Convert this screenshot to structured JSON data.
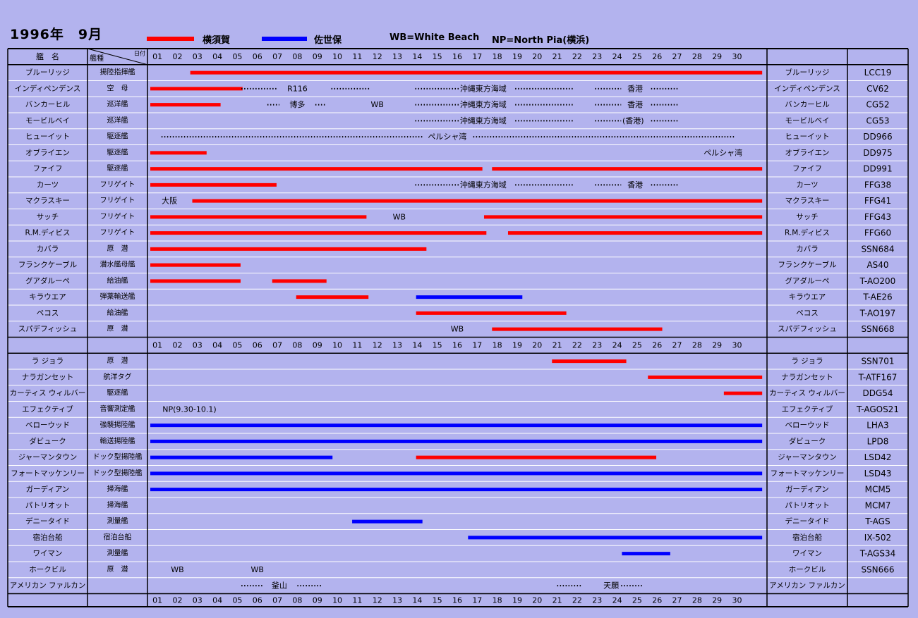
{
  "title": "1996年　9月",
  "legend": [
    {
      "label": "横須賀",
      "color": "#ff0000"
    },
    {
      "label": "佐世保",
      "color": "#0000ff"
    },
    {
      "label": "WB=White Beach"
    },
    {
      "label": "NP=North Pia(横浜)"
    }
  ],
  "headers": {
    "name": "艦　名",
    "type": "艦種",
    "date": "日付"
  },
  "colors": {
    "background": "#b3b3ee",
    "yokosuka": "#ff0000",
    "sasebo": "#0000ff",
    "border": "#000000",
    "grid": "#ffffff"
  },
  "chart_data": {
    "type": "gantt",
    "x": [
      "01",
      "02",
      "03",
      "04",
      "05",
      "06",
      "07",
      "08",
      "09",
      "10",
      "11",
      "12",
      "13",
      "14",
      "15",
      "16",
      "17",
      "18",
      "19",
      "20",
      "21",
      "22",
      "23",
      "24",
      "25",
      "26",
      "27",
      "28",
      "29",
      "30"
    ],
    "series": [
      {
        "name": "横須賀",
        "color": "#ff0000"
      },
      {
        "name": "佐世保",
        "color": "#0000ff"
      }
    ],
    "groups": [
      {
        "rows": [
          {
            "name": "ブルーリッジ",
            "type": "揚陸指揮艦",
            "code": "LCC19",
            "bars": [
              {
                "s": 1,
                "start": 3,
                "end": 30.9
              }
            ]
          },
          {
            "name": "インディペンデンス",
            "type": "空　母",
            "code": "CV62",
            "bars": [
              {
                "s": 1,
                "start": 1,
                "end": 4.9
              }
            ],
            "notes": [
              {
                "text": "R116",
                "at": 8
              },
              {
                "text": "沖縄東方海域",
                "at": 17.3
              },
              {
                "text": "香港",
                "at": 24.9
              }
            ],
            "dots": [
              [
                5.2,
                7
              ],
              [
                9.7,
                11.6
              ],
              [
                13.9,
                16.1
              ],
              [
                18.9,
                21.8
              ],
              [
                22.9,
                24.2
              ],
              [
                25.7,
                27.1
              ]
            ]
          },
          {
            "name": "バンカーヒル",
            "type": "巡洋艦",
            "code": "CG52",
            "bars": [
              {
                "s": 1,
                "start": 1,
                "end": 3.8
              }
            ],
            "notes": [
              {
                "text": "博多",
                "at": 8
              },
              {
                "text": "WB",
                "at": 12
              },
              {
                "text": "沖縄東方海域",
                "at": 17.3
              },
              {
                "text": "香港",
                "at": 24.9
              }
            ],
            "dots": [
              [
                6.5,
                7.1
              ],
              [
                8.9,
                9.4
              ],
              [
                13.9,
                16.1
              ],
              [
                18.9,
                21.8
              ],
              [
                22.9,
                24.2
              ],
              [
                25.7,
                27.1
              ]
            ]
          },
          {
            "name": "モービルベイ",
            "type": "巡洋艦",
            "code": "CG53",
            "notes": [
              {
                "text": "沖縄東方海域",
                "at": 17.3
              },
              {
                "text": "(香港)",
                "at": 24.8
              }
            ],
            "dots": [
              [
                13.9,
                16.1
              ],
              [
                18.9,
                21.8
              ],
              [
                22.9,
                24.2
              ],
              [
                25.7,
                27.1
              ]
            ]
          },
          {
            "name": "ヒューイット",
            "type": "駆逐艦",
            "code": "DD966",
            "notes": [
              {
                "text": "ペルシャ湾",
                "at": 15.5
              }
            ],
            "dots": [
              [
                1.2,
                14.3
              ],
              [
                16.8,
                29.9
              ]
            ]
          },
          {
            "name": "オブライエン",
            "type": "駆逐艦",
            "code": "DD975",
            "bars": [
              {
                "s": 1,
                "start": 1,
                "end": 3.1
              }
            ],
            "notes": [
              {
                "text": "ペルシャ湾",
                "at": 29.3
              }
            ]
          },
          {
            "name": "ファイフ",
            "type": "駆逐艦",
            "code": "DD991",
            "bars": [
              {
                "s": 1,
                "start": 1,
                "end": 16.9
              },
              {
                "s": 1,
                "start": 18.1,
                "end": 30.9
              }
            ]
          },
          {
            "name": "カーツ",
            "type": "フリゲイト",
            "code": "FFG38",
            "bars": [
              {
                "s": 1,
                "start": 1,
                "end": 6.6
              }
            ],
            "notes": [
              {
                "text": "沖縄東方海域",
                "at": 17.3
              },
              {
                "text": "香港",
                "at": 24.9
              }
            ],
            "dots": [
              [
                13.9,
                16.1
              ],
              [
                18.9,
                21.8
              ],
              [
                22.9,
                24.2
              ],
              [
                25.7,
                27.1
              ]
            ]
          },
          {
            "name": "マクラスキー",
            "type": "フリゲイト",
            "code": "FFG41",
            "bars": [
              {
                "s": 1,
                "start": 3.1,
                "end": 30.9
              }
            ],
            "notes": [
              {
                "text": "大阪",
                "at": 1.6
              }
            ]
          },
          {
            "name": "サッチ",
            "type": "フリゲイト",
            "code": "FFG43",
            "bars": [
              {
                "s": 1,
                "start": 1,
                "end": 11.1
              },
              {
                "s": 1,
                "start": 17.7,
                "end": 30.9
              }
            ],
            "notes": [
              {
                "text": "WB",
                "at": 13.1
              }
            ]
          },
          {
            "name": "R.M.ディビス",
            "type": "フリゲイト",
            "code": "FFG60",
            "bars": [
              {
                "s": 1,
                "start": 1,
                "end": 17.1
              },
              {
                "s": 1,
                "start": 18.9,
                "end": 30.9
              }
            ]
          },
          {
            "name": "カバラ",
            "type": "原　潜",
            "code": "SSN684",
            "bars": [
              {
                "s": 1,
                "start": 1,
                "end": 14.1
              }
            ]
          },
          {
            "name": "フランクケーブル",
            "type": "潜水艦母艦",
            "code": "AS40",
            "bars": [
              {
                "s": 1,
                "start": 1,
                "end": 4.8
              }
            ]
          },
          {
            "name": "グアダルーペ",
            "type": "給油艦",
            "code": "T-AO200",
            "bars": [
              {
                "s": 1,
                "start": 1,
                "end": 4.8
              },
              {
                "s": 1,
                "start": 7.1,
                "end": 9.1
              }
            ]
          },
          {
            "name": "キラウエア",
            "type": "弾薬輸送艦",
            "code": "T-AE26",
            "bars": [
              {
                "s": 1,
                "start": 8.3,
                "end": 11.2
              },
              {
                "s": 2,
                "start": 14.3,
                "end": 18.9
              }
            ]
          },
          {
            "name": "ペコス",
            "type": "給油艦",
            "code": "T-AO197",
            "bars": [
              {
                "s": 1,
                "start": 14.3,
                "end": 21.1
              }
            ]
          },
          {
            "name": "スパデフィッシュ",
            "type": "原　潜",
            "code": "SSN668",
            "bars": [
              {
                "s": 1,
                "start": 18.1,
                "end": 25.9
              }
            ],
            "notes": [
              {
                "text": "WB",
                "at": 16
              }
            ]
          }
        ]
      },
      {
        "rows": [
          {
            "name": "ラ ジョラ",
            "type": "原　潜",
            "code": "SSN701",
            "bars": [
              {
                "s": 1,
                "start": 21.1,
                "end": 24.1
              }
            ]
          },
          {
            "name": "ナラガンセット",
            "type": "航洋タグ",
            "code": "T-ATF167",
            "bars": [
              {
                "s": 1,
                "start": 25.9,
                "end": 30.9
              }
            ]
          },
          {
            "name": "カーティス ウィルバー",
            "type": "駆逐艦",
            "code": "DDG54",
            "bars": [
              {
                "s": 1,
                "start": 29.7,
                "end": 30.9
              }
            ]
          },
          {
            "name": "エフェクティブ",
            "type": "音響測定艦",
            "code": "T-AGOS21",
            "notes": [
              {
                "text": "NP(9.30-10.1)",
                "at": 2.6
              }
            ]
          },
          {
            "name": "ベローウッド",
            "type": "強襲揚陸艦",
            "code": "LHA3",
            "bars": [
              {
                "s": 2,
                "start": 1,
                "end": 30.9
              }
            ]
          },
          {
            "name": "ダビューク",
            "type": "輸送揚陸艦",
            "code": "LPD8",
            "bars": [
              {
                "s": 2,
                "start": 1,
                "end": 30.9
              }
            ]
          },
          {
            "name": "ジャーマンタウン",
            "type": "ドック型揚陸艦",
            "code": "LSD42",
            "bars": [
              {
                "s": 2,
                "start": 1,
                "end": 9.4
              },
              {
                "s": 1,
                "start": 14.3,
                "end": 25.6
              }
            ]
          },
          {
            "name": "フォートマッケンリー",
            "type": "ドック型揚陸艦",
            "code": "LSD43",
            "bars": [
              {
                "s": 2,
                "start": 1,
                "end": 30.9
              }
            ]
          },
          {
            "name": "ガーディアン",
            "type": "掃海艦",
            "code": "MCM5",
            "bars": [
              {
                "s": 2,
                "start": 1,
                "end": 30.9
              }
            ]
          },
          {
            "name": "パトリオット",
            "type": "掃海艦",
            "code": "MCM7"
          },
          {
            "name": "デニータイド",
            "type": "測量艦",
            "code": "T-AGS",
            "bars": [
              {
                "s": 2,
                "start": 11.1,
                "end": 13.9
              }
            ]
          },
          {
            "name": "宿泊台船",
            "type": "宿泊台船",
            "code": "IX-502",
            "bars": [
              {
                "s": 2,
                "start": 16.9,
                "end": 30.9
              }
            ]
          },
          {
            "name": "ワイマン",
            "type": "測量艦",
            "code": "T-AGS34",
            "bars": [
              {
                "s": 2,
                "start": 24.6,
                "end": 26.3
              }
            ]
          },
          {
            "name": "ホークビル",
            "type": "原　潜",
            "code": "SSN666",
            "notes": [
              {
                "text": "WB",
                "at": 2
              },
              {
                "text": "WB",
                "at": 6
              }
            ]
          },
          {
            "name": "アメリカン ファルカン",
            "type": "",
            "code": "",
            "notes": [
              {
                "text": "釜山",
                "at": 7.1
              },
              {
                "text": "天願",
                "at": 23.7
              }
            ],
            "dots": [
              [
                5.2,
                6.3
              ],
              [
                8,
                9.2
              ],
              [
                21,
                22.2
              ],
              [
                24.2,
                25.3
              ]
            ]
          }
        ]
      }
    ]
  }
}
